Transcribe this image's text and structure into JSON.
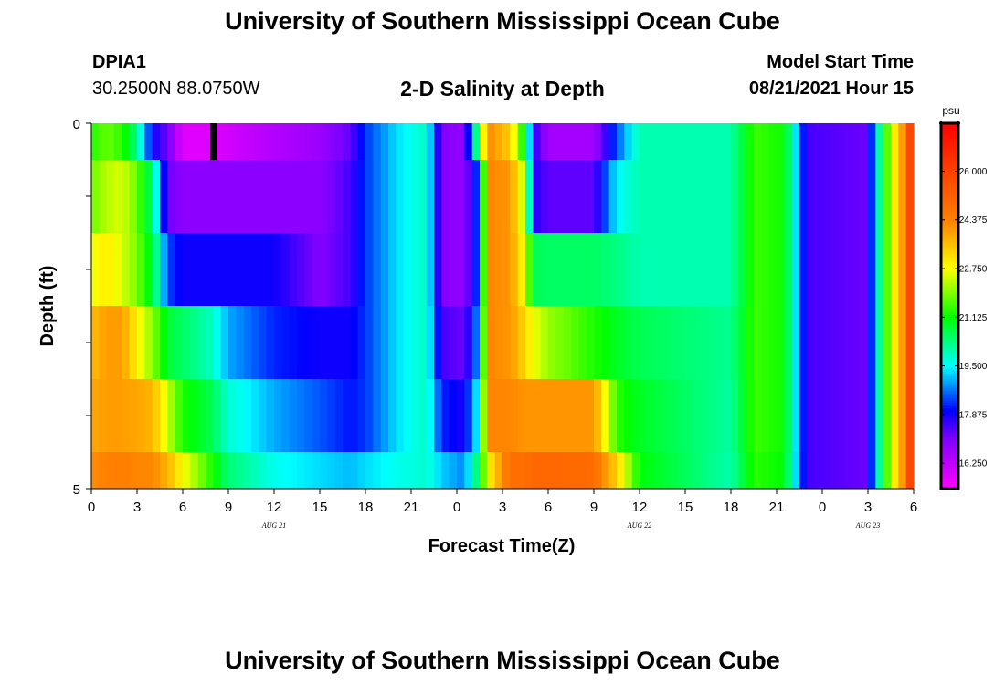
{
  "header": {
    "title": "University of Southern Mississippi Ocean Cube",
    "footer_title": "University of Southern Mississippi Ocean Cube",
    "station_id": "DPIA1",
    "coordinates": "30.2500N  88.0750W",
    "plot_title": "2-D Salinity at Depth",
    "model_start_label": "Model Start Time",
    "model_start_time": "08/21/2021 Hour 15"
  },
  "chart_data": {
    "type": "heatmap",
    "title": "2-D Salinity at Depth",
    "xlabel": "Forecast Time(Z)",
    "ylabel": "Depth (ft)",
    "x_range_hours": [
      0,
      54
    ],
    "y_range_ft": [
      0,
      5
    ],
    "y_ticks": [
      {
        "value": 0,
        "label": "0"
      },
      {
        "value": 1,
        "label": ""
      },
      {
        "value": 2,
        "label": ""
      },
      {
        "value": 3,
        "label": ""
      },
      {
        "value": 4,
        "label": ""
      },
      {
        "value": 5,
        "label": "5"
      }
    ],
    "x_ticks": [
      {
        "hour": 0,
        "label": "0"
      },
      {
        "hour": 3,
        "label": "3"
      },
      {
        "hour": 6,
        "label": "6"
      },
      {
        "hour": 9,
        "label": "9"
      },
      {
        "hour": 12,
        "label": "12"
      },
      {
        "hour": 15,
        "label": "15"
      },
      {
        "hour": 18,
        "label": "18"
      },
      {
        "hour": 21,
        "label": "21"
      },
      {
        "hour": 24,
        "label": "0"
      },
      {
        "hour": 27,
        "label": "3"
      },
      {
        "hour": 30,
        "label": "6"
      },
      {
        "hour": 33,
        "label": "9"
      },
      {
        "hour": 36,
        "label": "12"
      },
      {
        "hour": 39,
        "label": "15"
      },
      {
        "hour": 42,
        "label": "18"
      },
      {
        "hour": 45,
        "label": "21"
      },
      {
        "hour": 48,
        "label": "0"
      },
      {
        "hour": 51,
        "label": "3"
      },
      {
        "hour": 54,
        "label": "6"
      }
    ],
    "date_labels": [
      {
        "hour": 12,
        "label": "AUG  21"
      },
      {
        "hour": 36,
        "label": "AUG  22"
      },
      {
        "hour": 51,
        "label": "AUG  23"
      }
    ],
    "colorbar": {
      "unit": "psu",
      "min": 15.4,
      "max": 27.6,
      "tick_values": [
        16.25,
        17.875,
        19.5,
        21.125,
        22.75,
        24.375,
        26.0
      ],
      "tick_labels": [
        "16.250",
        "17.875",
        "19.500",
        "21.125",
        "22.750",
        "24.375",
        "26.000"
      ],
      "stops": [
        {
          "v": 15.4,
          "c": "#ff00ff"
        },
        {
          "v": 17.06,
          "c": "#8000ff"
        },
        {
          "v": 18.0,
          "c": "#0000ff"
        },
        {
          "v": 19.5,
          "c": "#00ffff"
        },
        {
          "v": 21.125,
          "c": "#00ff00"
        },
        {
          "v": 22.75,
          "c": "#ffff00"
        },
        {
          "v": 24.375,
          "c": "#ff8000"
        },
        {
          "v": 27.6,
          "c": "#ff0000"
        }
      ]
    },
    "depth_layers_ft": [
      [
        0,
        0.5
      ],
      [
        0.5,
        1.5
      ],
      [
        1.5,
        2.5
      ],
      [
        2.5,
        3.5
      ],
      [
        3.5,
        4.5
      ],
      [
        4.5,
        5
      ]
    ],
    "time_keyframes": [
      {
        "hour": 0,
        "values": [
          21.3,
          21.8,
          22.6,
          23.6,
          23.9,
          24.2
        ]
      },
      {
        "hour": 1,
        "values": [
          21.8,
          22.3,
          23.0,
          24.0,
          24.0,
          24.4
        ]
      },
      {
        "hour": 2,
        "values": [
          21.4,
          22.5,
          22.5,
          24.0,
          24.0,
          24.4
        ]
      },
      {
        "hour": 3,
        "values": [
          20.3,
          21.8,
          21.9,
          22.9,
          23.9,
          24.3
        ]
      },
      {
        "hour": 4,
        "values": [
          17.9,
          20.4,
          20.8,
          22.0,
          23.7,
          24.3
        ]
      },
      {
        "hour": 5,
        "values": [
          17.2,
          17.2,
          18.4,
          20.8,
          22.4,
          23.7
        ]
      },
      {
        "hour": 6,
        "values": [
          15.8,
          16.9,
          17.9,
          20.5,
          21.3,
          22.8
        ]
      },
      {
        "hour": 7.9,
        "values": [
          15.8,
          16.9,
          17.9,
          19.9,
          20.6,
          21.3
        ]
      },
      {
        "hour": 9,
        "values": [
          16.0,
          16.9,
          17.9,
          19.0,
          19.8,
          20.4
        ]
      },
      {
        "hour": 12,
        "values": [
          16.4,
          16.9,
          17.9,
          18.2,
          19.0,
          19.6
        ]
      },
      {
        "hour": 15,
        "values": [
          16.7,
          16.9,
          17.0,
          17.9,
          18.5,
          19.3
        ]
      },
      {
        "hour": 17,
        "values": [
          17.3,
          17.5,
          17.5,
          17.9,
          18.1,
          19.1
        ]
      },
      {
        "hour": 18,
        "values": [
          18.3,
          18.3,
          18.3,
          18.3,
          18.3,
          19.3
        ]
      },
      {
        "hour": 20,
        "values": [
          19.3,
          19.3,
          19.3,
          19.3,
          19.3,
          19.6
        ]
      },
      {
        "hour": 22,
        "values": [
          19.9,
          19.9,
          19.9,
          19.9,
          19.9,
          19.8
        ]
      },
      {
        "hour": 23,
        "values": [
          17.0,
          17.0,
          17.0,
          17.5,
          18.2,
          19.2
        ]
      },
      {
        "hour": 24.5,
        "values": [
          16.8,
          16.8,
          16.8,
          17.2,
          17.8,
          18.8
        ]
      },
      {
        "hour": 25.5,
        "values": [
          21.4,
          18.7,
          18.7,
          19.1,
          19.8,
          20.8
        ]
      },
      {
        "hour": 26,
        "values": [
          24.3,
          24.3,
          24.3,
          24.3,
          24.3,
          22.8
        ]
      },
      {
        "hour": 27.5,
        "values": [
          23.4,
          24.1,
          24.1,
          24.1,
          24.3,
          24.8
        ]
      },
      {
        "hour": 28.5,
        "values": [
          20.8,
          22.0,
          22.6,
          23.2,
          24.1,
          24.8
        ]
      },
      {
        "hour": 29,
        "values": [
          17.8,
          17.8,
          20.6,
          22.7,
          24.1,
          25.0
        ]
      },
      {
        "hour": 30,
        "values": [
          16.6,
          17.3,
          20.5,
          22.1,
          24.1,
          25.0
        ]
      },
      {
        "hour": 33,
        "values": [
          16.6,
          17.3,
          20.5,
          21.3,
          24.1,
          24.9
        ]
      },
      {
        "hour": 34.5,
        "values": [
          18.5,
          19.5,
          20.3,
          20.9,
          21.4,
          23.3
        ]
      },
      {
        "hour": 36,
        "values": [
          20.0,
          20.0,
          20.0,
          20.6,
          20.9,
          21.1
        ]
      },
      {
        "hour": 42,
        "values": [
          20.0,
          20.0,
          20.0,
          20.2,
          20.1,
          20.0
        ]
      },
      {
        "hour": 43.5,
        "values": [
          21.5,
          21.5,
          21.5,
          21.5,
          21.5,
          21.4
        ]
      },
      {
        "hour": 45.5,
        "values": [
          21.2,
          21.2,
          21.2,
          21.2,
          21.2,
          21.1
        ]
      },
      {
        "hour": 47,
        "values": [
          17.5,
          17.5,
          17.5,
          17.5,
          17.5,
          17.5
        ]
      },
      {
        "hour": 51,
        "values": [
          17.2,
          17.2,
          17.2,
          17.2,
          17.2,
          17.2
        ]
      },
      {
        "hour": 51.5,
        "values": [
          19.3,
          19.3,
          19.3,
          19.3,
          19.3,
          19.3
        ]
      },
      {
        "hour": 52.5,
        "values": [
          22.5,
          22.5,
          22.5,
          22.5,
          22.5,
          22.5
        ]
      },
      {
        "hour": 53.5,
        "values": [
          24.5,
          24.5,
          24.5,
          24.5,
          24.5,
          24.5
        ]
      },
      {
        "hour": 54,
        "values": [
          27.0,
          27.0,
          27.0,
          27.0,
          27.0,
          27.0
        ]
      }
    ],
    "time_marker_hour": 8,
    "time_step_hours": 0.5
  },
  "colors": {
    "axis": "#000000",
    "marker": "#000000",
    "colorbar_border": "#000000"
  }
}
